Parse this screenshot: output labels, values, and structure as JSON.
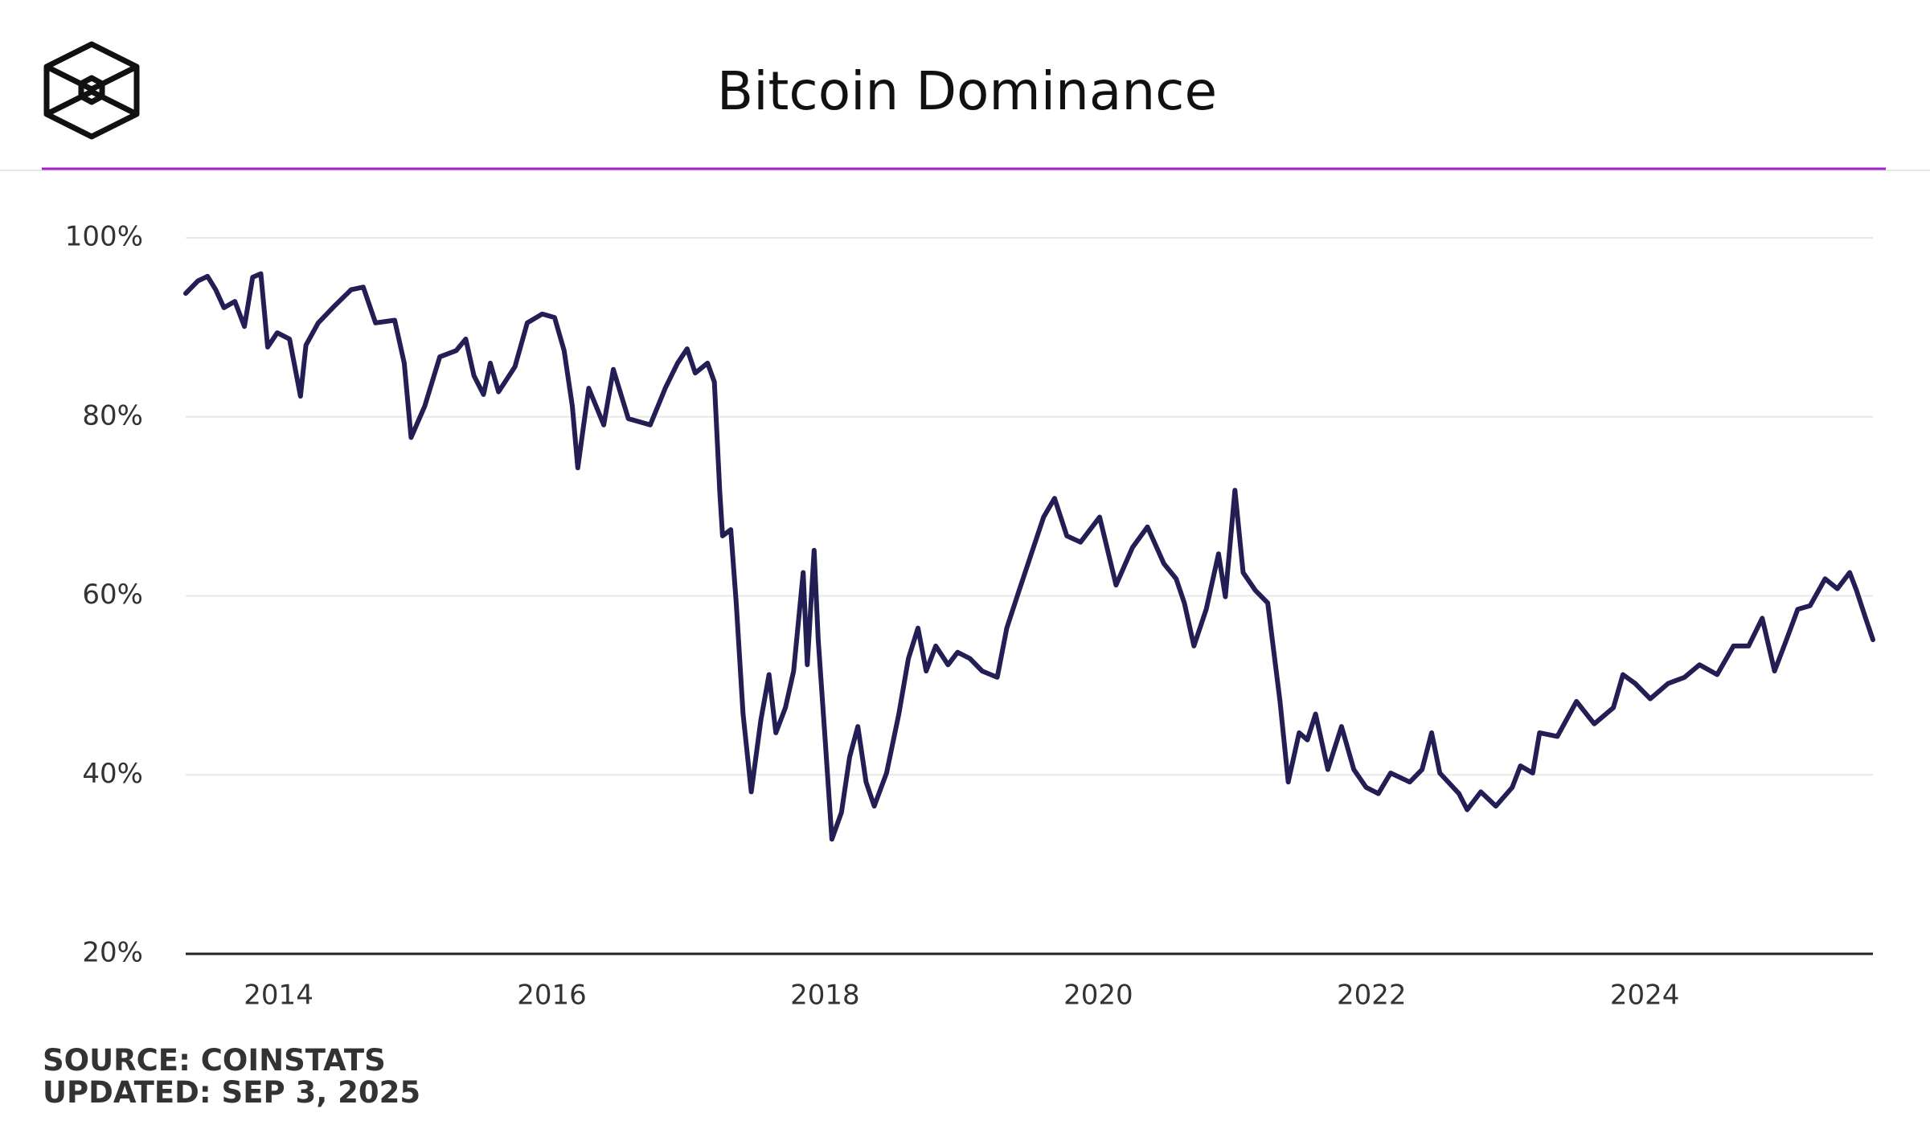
{
  "chart_data": {
    "type": "line",
    "title": "Bitcoin Dominance",
    "source": "SOURCE: COINSTATS",
    "updated": "UPDATED: SEP 3, 2025",
    "color": "#231f55",
    "grid": true,
    "xlim": [
      2013.32,
      2025.67
    ],
    "xticks": [
      2014,
      2016,
      2018,
      2020,
      2022,
      2024
    ],
    "ylim": [
      20,
      100
    ],
    "yticks": [
      {
        "value": 20,
        "label": "20%"
      },
      {
        "value": 40,
        "label": "40%"
      },
      {
        "value": 60,
        "label": "60%"
      },
      {
        "value": 80,
        "label": "80%"
      },
      {
        "value": 100,
        "label": "100%"
      }
    ],
    "x": [
      2013.32,
      2013.41,
      2013.48,
      2013.54,
      2013.6,
      2013.68,
      2013.75,
      2013.81,
      2013.87,
      2013.92,
      2013.99,
      2014.08,
      2014.16,
      2014.2,
      2014.29,
      2014.41,
      2014.53,
      2014.62,
      2014.71,
      2014.85,
      2014.92,
      2014.97,
      2015.07,
      2015.18,
      2015.3,
      2015.37,
      2015.43,
      2015.5,
      2015.55,
      2015.61,
      2015.73,
      2015.82,
      2015.93,
      2016.02,
      2016.09,
      2016.15,
      2016.19,
      2016.27,
      2016.38,
      2016.45,
      2016.56,
      2016.72,
      2016.83,
      2016.92,
      2016.99,
      2017.05,
      2017.14,
      2017.19,
      2017.23,
      2017.25,
      2017.31,
      2017.35,
      2017.4,
      2017.46,
      2017.53,
      2017.59,
      2017.64,
      2017.71,
      2017.77,
      2017.84,
      2017.87,
      2017.92,
      2017.95,
      2018.0,
      2018.05,
      2018.12,
      2018.18,
      2018.24,
      2018.3,
      2018.36,
      2018.45,
      2018.54,
      2018.61,
      2018.68,
      2018.74,
      2018.81,
      2018.9,
      2018.97,
      2019.06,
      2019.15,
      2019.26,
      2019.33,
      2019.42,
      2019.51,
      2019.6,
      2019.68,
      2019.77,
      2019.87,
      2020.01,
      2020.13,
      2020.25,
      2020.36,
      2020.48,
      2020.57,
      2020.63,
      2020.7,
      2020.79,
      2020.88,
      2020.93,
      2021.0,
      2021.06,
      2021.15,
      2021.24,
      2021.33,
      2021.39,
      2021.47,
      2021.53,
      2021.59,
      2021.68,
      2021.78,
      2021.87,
      2021.96,
      2022.05,
      2022.14,
      2022.28,
      2022.37,
      2022.44,
      2022.5,
      2022.64,
      2022.7,
      2022.8,
      2022.91,
      2023.03,
      2023.09,
      2023.18,
      2023.23,
      2023.36,
      2023.5,
      2023.63,
      2023.77,
      2023.84,
      2023.93,
      2024.04,
      2024.17,
      2024.29,
      2024.4,
      2024.53,
      2024.65,
      2024.76,
      2024.86,
      2024.95,
      2025.03,
      2025.12,
      2025.21,
      2025.32,
      2025.41,
      2025.5,
      2025.55,
      2025.61,
      2025.67
    ],
    "values": [
      93.8,
      95.2,
      95.7,
      94.2,
      92.2,
      92.9,
      90.1,
      95.6,
      96.0,
      87.8,
      89.4,
      88.7,
      82.3,
      88.0,
      90.5,
      92.4,
      94.2,
      94.5,
      90.5,
      90.8,
      86.0,
      77.7,
      81.2,
      86.7,
      87.4,
      88.7,
      84.6,
      82.5,
      86.0,
      82.8,
      85.6,
      90.5,
      91.5,
      91.1,
      87.4,
      81.2,
      74.3,
      83.2,
      79.1,
      85.3,
      79.8,
      79.1,
      83.2,
      86.0,
      87.6,
      84.9,
      86.0,
      83.9,
      71.5,
      66.7,
      67.4,
      59.2,
      46.8,
      38.1,
      46.1,
      51.2,
      44.7,
      47.5,
      51.6,
      62.6,
      52.3,
      65.1,
      55.1,
      44.1,
      32.8,
      35.8,
      42.0,
      45.4,
      39.2,
      36.5,
      40.2,
      46.8,
      53.0,
      56.4,
      51.6,
      54.4,
      52.3,
      53.7,
      53.0,
      51.6,
      50.9,
      56.4,
      60.6,
      64.7,
      68.8,
      70.9,
      66.7,
      66.0,
      68.8,
      61.2,
      65.4,
      67.7,
      63.6,
      61.9,
      59.2,
      54.4,
      58.5,
      64.7,
      59.9,
      71.8,
      62.6,
      60.6,
      59.2,
      48.2,
      39.2,
      44.7,
      43.9,
      46.8,
      40.6,
      45.4,
      40.6,
      38.6,
      37.9,
      40.2,
      39.2,
      40.6,
      44.7,
      40.2,
      37.9,
      36.1,
      38.1,
      36.5,
      38.6,
      41.0,
      40.2,
      44.7,
      44.3,
      48.2,
      45.7,
      47.5,
      51.2,
      50.2,
      48.5,
      50.2,
      50.9,
      52.3,
      51.2,
      54.4,
      54.4,
      57.5,
      51.6,
      54.8,
      58.5,
      58.9,
      61.9,
      60.8,
      62.6,
      60.6,
      57.8,
      55.1
    ]
  }
}
